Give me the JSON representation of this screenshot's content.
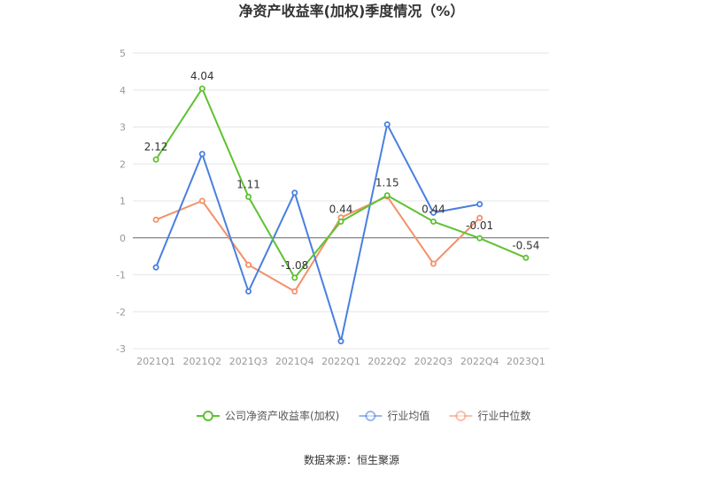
{
  "chart_data": {
    "type": "line",
    "title": "净资产收益率(加权)季度情况（%）",
    "categories": [
      "2021Q1",
      "2021Q2",
      "2021Q3",
      "2021Q4",
      "2022Q1",
      "2022Q2",
      "2022Q3",
      "2022Q4",
      "2023Q1"
    ],
    "ylim": [
      -3,
      5
    ],
    "yticks": [
      5,
      4,
      3,
      2,
      1,
      0,
      -1,
      -2,
      -3
    ],
    "grid": true,
    "legend_position": "bottom",
    "series": [
      {
        "name": "公司净资产收益率(加权)",
        "color": "#5ec232",
        "values": [
          2.12,
          4.04,
          1.11,
          -1.08,
          0.44,
          1.15,
          0.44,
          -0.01,
          -0.54
        ],
        "labels": [
          "2.12",
          "4.04",
          "1.11",
          "-1.08",
          "0.44",
          "1.15",
          "0.44",
          "-0.01",
          "-0.54"
        ]
      },
      {
        "name": "行业均值",
        "color": "#4a7fe0",
        "values": [
          -0.8,
          2.27,
          -1.45,
          1.22,
          -2.8,
          3.07,
          0.68,
          0.91,
          null
        ]
      },
      {
        "name": "行业中位数",
        "color": "#f4906a",
        "values": [
          0.49,
          1.0,
          -0.73,
          -1.45,
          0.55,
          1.12,
          -0.7,
          0.54,
          null
        ]
      }
    ]
  },
  "source": "数据来源：恒生聚源"
}
